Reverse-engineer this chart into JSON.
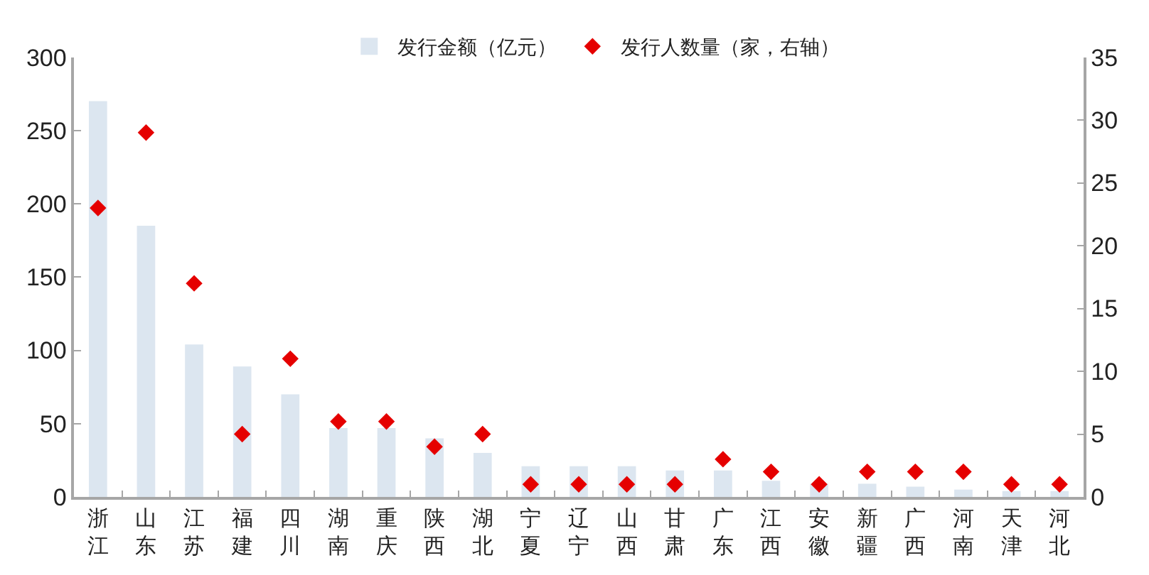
{
  "chart_data": {
    "type": "bar",
    "categories": [
      "浙江",
      "山东",
      "江苏",
      "福建",
      "四川",
      "湖南",
      "重庆",
      "陕西",
      "湖北",
      "宁夏",
      "辽宁",
      "山西",
      "甘肃",
      "广东",
      "江西",
      "安徽",
      "新疆",
      "广西",
      "河南",
      "天津",
      "河北"
    ],
    "series": [
      {
        "name": "发行金额（亿元）",
        "color": "#dce6f0",
        "values": [
          270,
          185,
          104,
          89,
          70,
          47,
          47,
          40,
          30,
          21,
          21,
          21,
          18,
          18,
          11,
          9,
          9,
          7,
          5,
          4,
          4
        ]
      },
      {
        "name": "发行人数量（家，右轴）",
        "type": "scatter",
        "axis": "y2",
        "marker": "diamond",
        "color": "#e50000",
        "values": [
          23,
          29,
          17,
          5,
          11,
          6,
          6,
          4,
          5,
          1,
          1,
          1,
          1,
          3,
          2,
          1,
          2,
          2,
          2,
          1,
          1
        ]
      }
    ],
    "ylim": [
      0,
      300
    ],
    "yticks": [
      0,
      50,
      100,
      150,
      200,
      250,
      300
    ],
    "y2lim": [
      0,
      35
    ],
    "y2ticks": [
      0,
      5,
      10,
      15,
      20,
      25,
      30,
      35
    ],
    "legend": "top"
  }
}
